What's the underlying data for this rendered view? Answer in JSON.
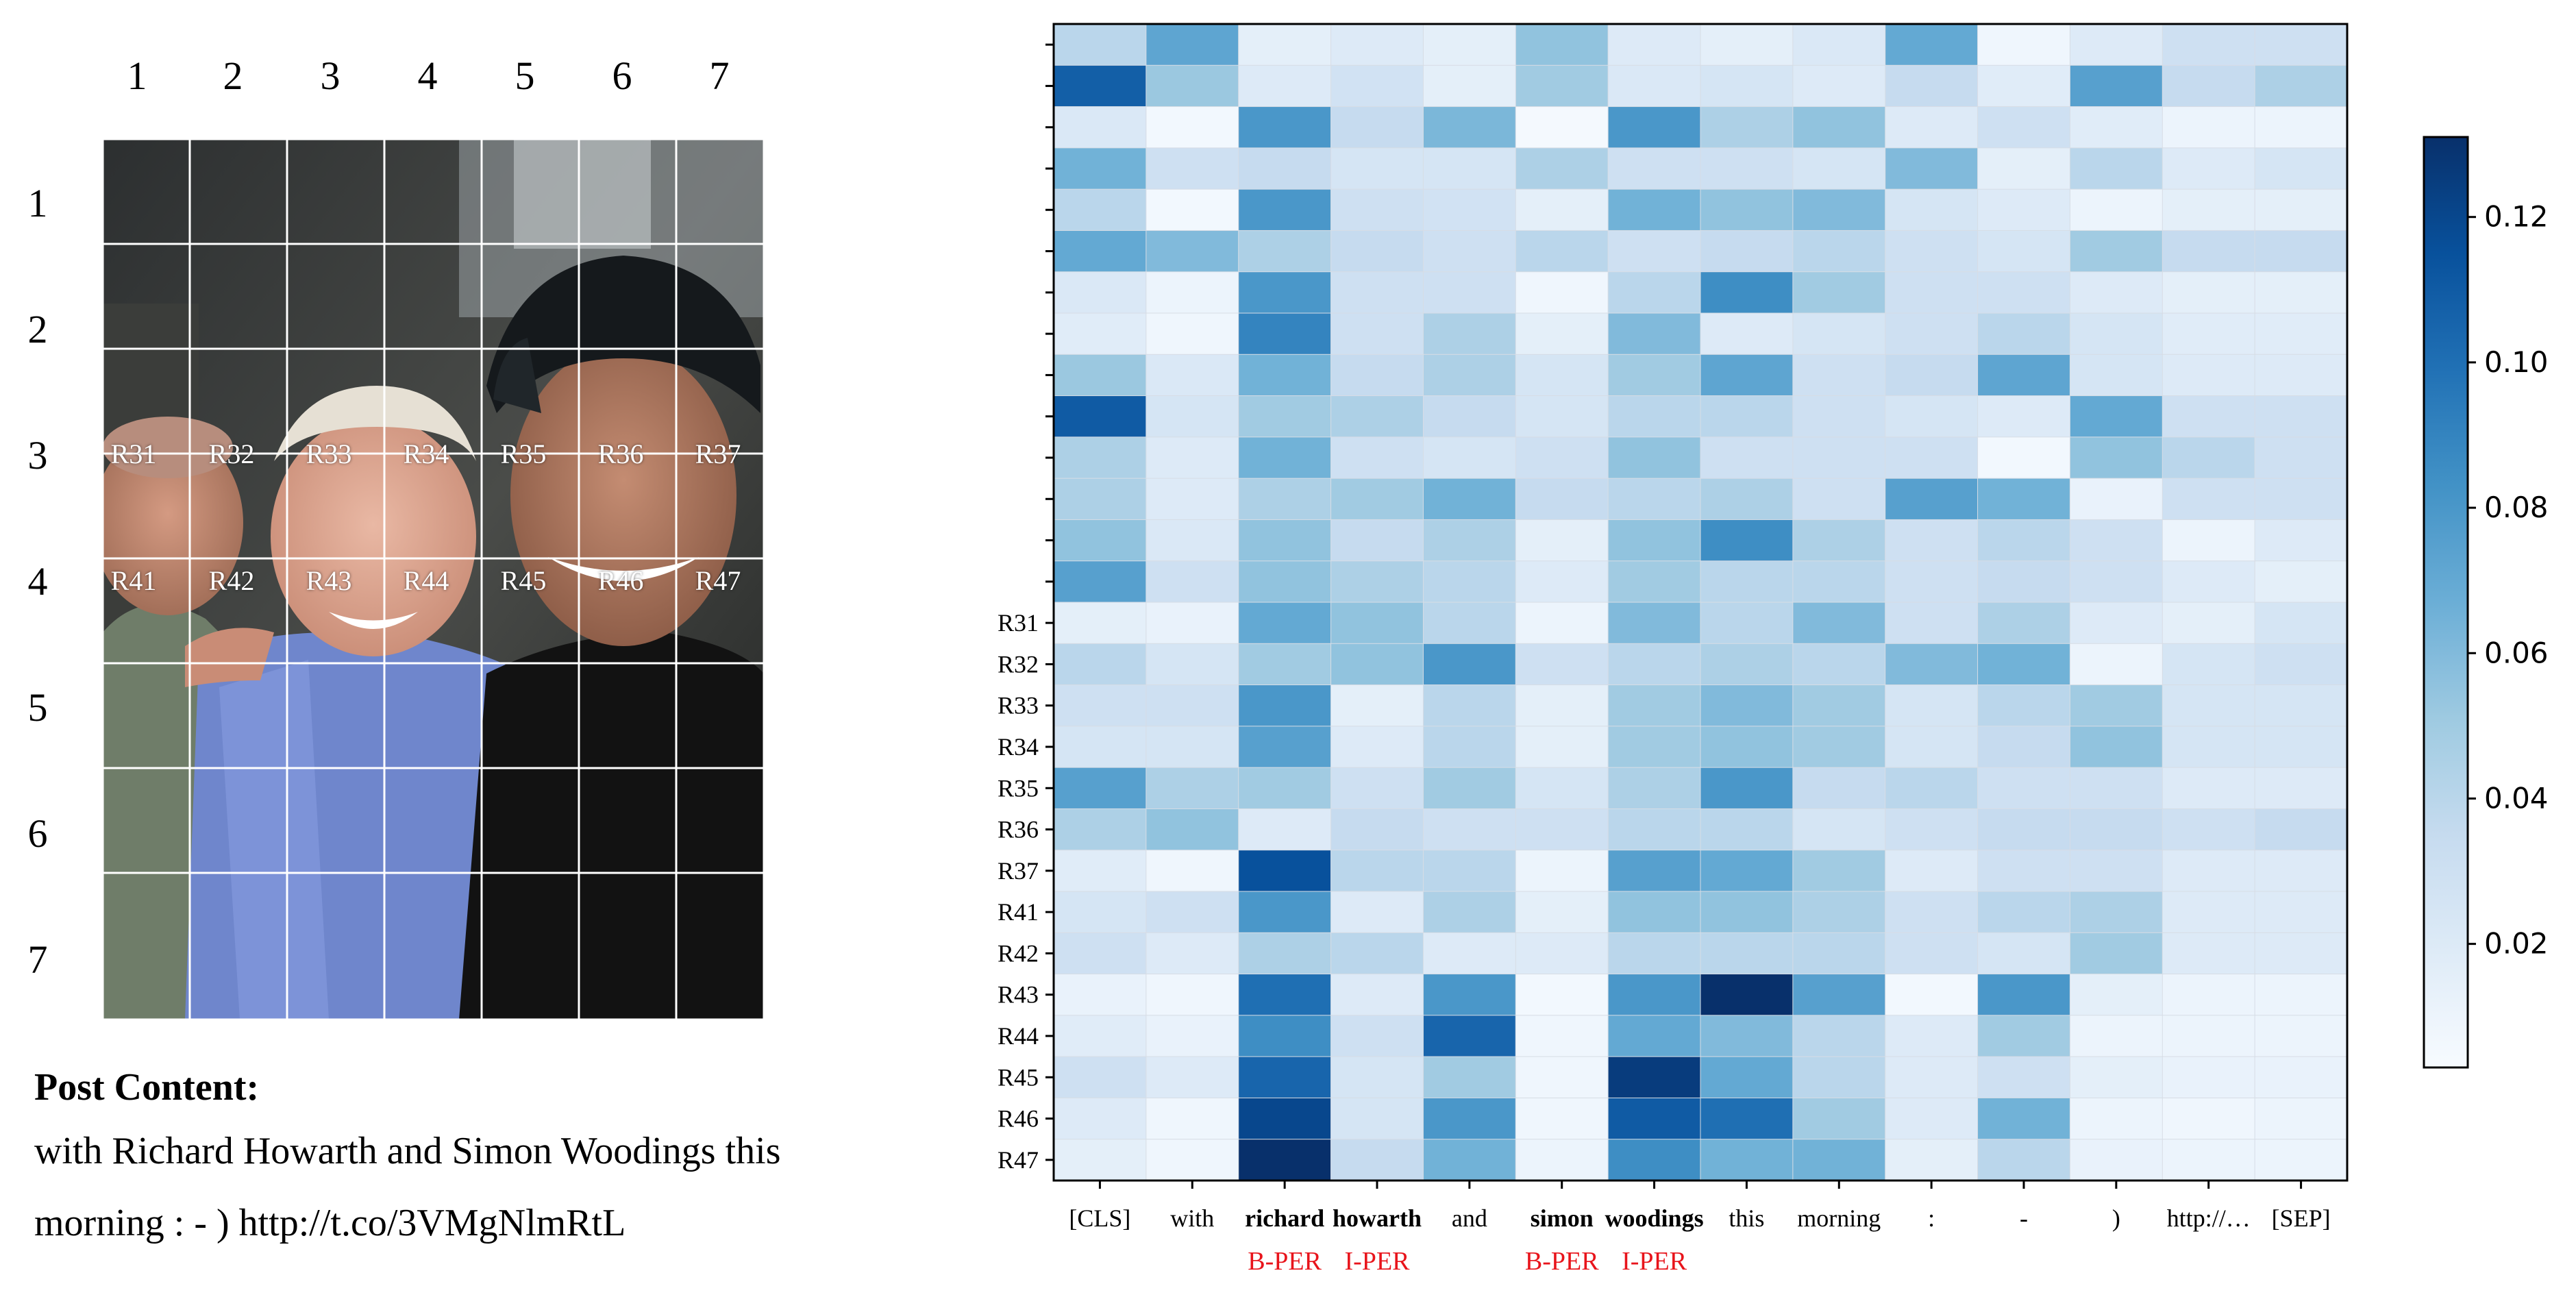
{
  "photo_grid": {
    "column_numbers": [
      "1",
      "2",
      "3",
      "4",
      "5",
      "6",
      "7"
    ],
    "row_numbers": [
      "1",
      "2",
      "3",
      "4",
      "5",
      "6",
      "7"
    ],
    "region_labels_row3": [
      "R31",
      "R32",
      "R33",
      "R34",
      "R35",
      "R36",
      "R37"
    ],
    "region_labels_row4": [
      "R41",
      "R42",
      "R43",
      "R44",
      "R45",
      "R46",
      "R47"
    ]
  },
  "post": {
    "title": "Post Content:",
    "line1": "with Richard Howarth and Simon Woodings this",
    "line2": "morning : - ) http://t.co/3VMgNlmRtL"
  },
  "colors": {
    "colormap": "Blues",
    "entity_tag_color": "#e8141b"
  },
  "chart_data": {
    "type": "heatmap",
    "x_tokens": [
      {
        "text": "[CLS]",
        "bold": false,
        "tag": ""
      },
      {
        "text": "with",
        "bold": false,
        "tag": ""
      },
      {
        "text": "richard",
        "bold": true,
        "tag": "B-PER"
      },
      {
        "text": "howarth",
        "bold": true,
        "tag": "I-PER"
      },
      {
        "text": "and",
        "bold": false,
        "tag": ""
      },
      {
        "text": "simon",
        "bold": true,
        "tag": "B-PER"
      },
      {
        "text": "woodings",
        "bold": true,
        "tag": "I-PER"
      },
      {
        "text": "this",
        "bold": false,
        "tag": ""
      },
      {
        "text": "morning",
        "bold": false,
        "tag": ""
      },
      {
        "text": ":",
        "bold": false,
        "tag": ""
      },
      {
        "text": "-",
        "bold": false,
        "tag": ""
      },
      {
        "text": ")",
        "bold": false,
        "tag": ""
      },
      {
        "text": "http://…",
        "bold": false,
        "tag": ""
      },
      {
        "text": "[SEP]",
        "bold": false,
        "tag": ""
      }
    ],
    "y_labels": [
      "",
      "",
      "",
      "",
      "",
      "",
      "",
      "",
      "",
      "",
      "",
      "",
      "",
      "",
      "R31",
      "R32",
      "R33",
      "R34",
      "R35",
      "R36",
      "R37",
      "R41",
      "R42",
      "R43",
      "R44",
      "R45",
      "R46",
      "R47"
    ],
    "colorbar": {
      "min": 0.003,
      "max": 0.131,
      "ticks": [
        "0.02",
        "0.04",
        "0.06",
        "0.08",
        "0.10",
        "0.12"
      ]
    },
    "values": [
      [
        0.04,
        0.072,
        0.015,
        0.02,
        0.015,
        0.055,
        0.02,
        0.015,
        0.022,
        0.07,
        0.008,
        0.02,
        0.03,
        0.03
      ],
      [
        0.108,
        0.052,
        0.02,
        0.028,
        0.015,
        0.05,
        0.022,
        0.025,
        0.02,
        0.035,
        0.018,
        0.075,
        0.035,
        0.045
      ],
      [
        0.022,
        0.006,
        0.08,
        0.035,
        0.062,
        0.005,
        0.08,
        0.045,
        0.055,
        0.02,
        0.03,
        0.018,
        0.01,
        0.01
      ],
      [
        0.065,
        0.03,
        0.035,
        0.025,
        0.025,
        0.045,
        0.03,
        0.03,
        0.025,
        0.06,
        0.015,
        0.04,
        0.02,
        0.025
      ],
      [
        0.04,
        0.006,
        0.08,
        0.03,
        0.028,
        0.015,
        0.065,
        0.055,
        0.06,
        0.025,
        0.02,
        0.01,
        0.015,
        0.015
      ],
      [
        0.07,
        0.06,
        0.045,
        0.035,
        0.03,
        0.04,
        0.03,
        0.035,
        0.04,
        0.03,
        0.025,
        0.05,
        0.035,
        0.035
      ],
      [
        0.022,
        0.01,
        0.08,
        0.03,
        0.03,
        0.008,
        0.04,
        0.085,
        0.05,
        0.03,
        0.03,
        0.02,
        0.015,
        0.015
      ],
      [
        0.018,
        0.008,
        0.09,
        0.03,
        0.045,
        0.015,
        0.06,
        0.02,
        0.025,
        0.03,
        0.04,
        0.025,
        0.018,
        0.018
      ],
      [
        0.052,
        0.022,
        0.065,
        0.035,
        0.045,
        0.025,
        0.05,
        0.072,
        0.03,
        0.035,
        0.072,
        0.025,
        0.02,
        0.02
      ],
      [
        0.11,
        0.025,
        0.05,
        0.045,
        0.035,
        0.025,
        0.04,
        0.04,
        0.03,
        0.025,
        0.02,
        0.07,
        0.03,
        0.03
      ],
      [
        0.045,
        0.02,
        0.065,
        0.03,
        0.025,
        0.03,
        0.055,
        0.03,
        0.03,
        0.03,
        0.006,
        0.055,
        0.04,
        0.03
      ],
      [
        0.045,
        0.02,
        0.045,
        0.05,
        0.065,
        0.035,
        0.04,
        0.045,
        0.03,
        0.075,
        0.065,
        0.012,
        0.03,
        0.03
      ],
      [
        0.055,
        0.022,
        0.055,
        0.035,
        0.045,
        0.015,
        0.055,
        0.085,
        0.045,
        0.03,
        0.04,
        0.03,
        0.01,
        0.02
      ],
      [
        0.075,
        0.03,
        0.055,
        0.045,
        0.04,
        0.02,
        0.05,
        0.04,
        0.04,
        0.03,
        0.035,
        0.03,
        0.02,
        0.015
      ],
      [
        0.015,
        0.012,
        0.07,
        0.055,
        0.04,
        0.01,
        0.06,
        0.04,
        0.06,
        0.03,
        0.045,
        0.02,
        0.015,
        0.025
      ],
      [
        0.04,
        0.025,
        0.05,
        0.055,
        0.08,
        0.03,
        0.04,
        0.045,
        0.04,
        0.06,
        0.065,
        0.01,
        0.025,
        0.03
      ],
      [
        0.03,
        0.03,
        0.08,
        0.015,
        0.04,
        0.015,
        0.05,
        0.06,
        0.05,
        0.025,
        0.04,
        0.05,
        0.025,
        0.025
      ],
      [
        0.025,
        0.025,
        0.075,
        0.02,
        0.04,
        0.015,
        0.05,
        0.055,
        0.05,
        0.025,
        0.035,
        0.055,
        0.025,
        0.025
      ],
      [
        0.075,
        0.045,
        0.05,
        0.03,
        0.05,
        0.025,
        0.045,
        0.08,
        0.035,
        0.04,
        0.03,
        0.03,
        0.02,
        0.02
      ],
      [
        0.045,
        0.055,
        0.02,
        0.035,
        0.03,
        0.03,
        0.04,
        0.04,
        0.025,
        0.03,
        0.035,
        0.035,
        0.03,
        0.035
      ],
      [
        0.018,
        0.008,
        0.115,
        0.04,
        0.04,
        0.01,
        0.075,
        0.07,
        0.05,
        0.02,
        0.03,
        0.03,
        0.02,
        0.02
      ],
      [
        0.025,
        0.03,
        0.08,
        0.02,
        0.045,
        0.015,
        0.055,
        0.055,
        0.045,
        0.03,
        0.04,
        0.045,
        0.02,
        0.02
      ],
      [
        0.03,
        0.02,
        0.045,
        0.04,
        0.02,
        0.02,
        0.04,
        0.04,
        0.04,
        0.03,
        0.025,
        0.05,
        0.02,
        0.02
      ],
      [
        0.012,
        0.008,
        0.1,
        0.02,
        0.08,
        0.006,
        0.08,
        0.131,
        0.075,
        0.006,
        0.08,
        0.015,
        0.01,
        0.01
      ],
      [
        0.018,
        0.012,
        0.085,
        0.03,
        0.105,
        0.008,
        0.07,
        0.06,
        0.04,
        0.02,
        0.05,
        0.01,
        0.01,
        0.01
      ],
      [
        0.03,
        0.02,
        0.105,
        0.025,
        0.05,
        0.008,
        0.125,
        0.07,
        0.04,
        0.02,
        0.03,
        0.015,
        0.012,
        0.012
      ],
      [
        0.02,
        0.008,
        0.12,
        0.025,
        0.08,
        0.008,
        0.11,
        0.1,
        0.05,
        0.02,
        0.065,
        0.01,
        0.008,
        0.01
      ],
      [
        0.015,
        0.008,
        0.131,
        0.035,
        0.065,
        0.01,
        0.085,
        0.065,
        0.065,
        0.015,
        0.04,
        0.012,
        0.01,
        0.01
      ]
    ]
  }
}
